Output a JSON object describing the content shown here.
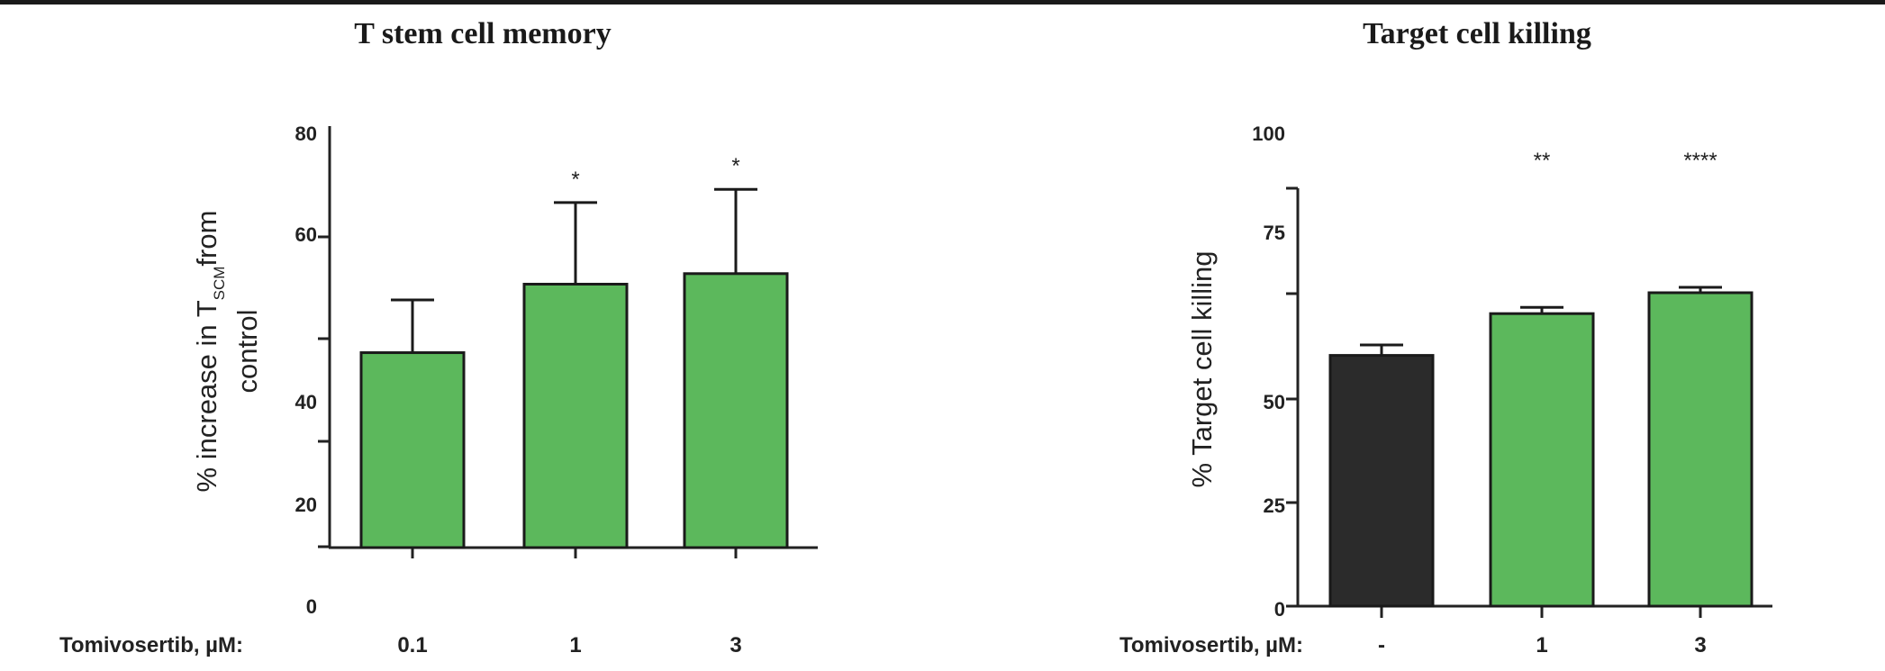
{
  "chart_data": [
    {
      "type": "bar",
      "title": "T stem cell memory",
      "ylabel_prefix": "% increase in T",
      "ylabel_subscript": "SCM",
      "ylabel_suffix": "from",
      "ylabel_line2": "control",
      "xlabel": "Tomivosertib, µM:",
      "categories": [
        "0.1",
        "1",
        "3"
      ],
      "values": [
        37,
        50,
        52
      ],
      "errors": [
        10,
        15.5,
        16
      ],
      "significance": [
        "",
        "*",
        "*"
      ],
      "bar_colors": [
        "#5cb85c",
        "#5cb85c",
        "#5cb85c"
      ],
      "yticks": [
        "0",
        "20",
        "40",
        "60",
        "80"
      ],
      "ylim": [
        0,
        80
      ]
    },
    {
      "type": "bar",
      "title": "Target cell killing",
      "ylabel": "% Target cell killing",
      "xlabel": "Tomivosertib, µM:",
      "categories": [
        "-",
        "1",
        "3"
      ],
      "values": [
        60,
        70,
        75
      ],
      "errors": [
        2.5,
        1.5,
        1.3
      ],
      "significance": [
        "",
        "**",
        "****"
      ],
      "bar_colors": [
        "#2b2b2b",
        "#5cb85c",
        "#5cb85c"
      ],
      "yticks": [
        "0",
        "25",
        "50",
        "75",
        "100"
      ],
      "ylim": [
        0,
        100
      ]
    }
  ]
}
